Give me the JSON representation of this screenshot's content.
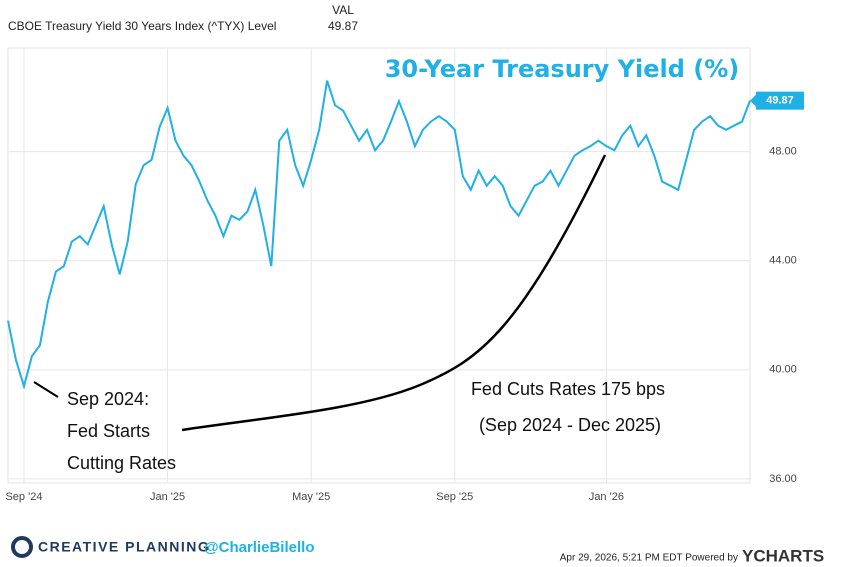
{
  "chart_data": {
    "type": "line",
    "header": {
      "series_label": "CBOE Treasury Yield 30 Years Index (^TYX) Level",
      "value_heading": "VAL"
    },
    "title": "30-Year Treasury Yield (%)",
    "annotations": {
      "left": [
        "Sep 2024:",
        "Fed Starts",
        "Cutting Rates"
      ],
      "right": [
        "Fed Cuts Rates 175 bps",
        "(Sep 2024 - Dec 2025)"
      ]
    },
    "categories": [
      null,
      null,
      "Sep '24",
      null,
      null,
      null,
      null,
      null,
      null,
      null,
      null,
      null,
      null,
      null,
      null,
      null,
      null,
      null,
      null,
      null,
      "Jan '25",
      null,
      null,
      null,
      null,
      null,
      null,
      null,
      null,
      null,
      null,
      null,
      null,
      null,
      null,
      null,
      null,
      null,
      "May '25",
      null,
      null,
      null,
      null,
      null,
      null,
      null,
      null,
      null,
      null,
      null,
      null,
      null,
      null,
      null,
      null,
      null,
      "Sep '25",
      null,
      null,
      null,
      null,
      null,
      null,
      null,
      null,
      null,
      null,
      null,
      null,
      null,
      null,
      null,
      null,
      null,
      null,
      "Jan '26",
      null,
      null,
      null,
      null,
      null,
      null,
      null,
      null,
      null,
      null,
      null,
      null,
      null,
      null,
      null,
      null,
      null,
      null
    ],
    "series": [
      {
        "name": "CBOE Treasury Yield 30 Years Index (^TYX) Level",
        "color": "#1fb0e6",
        "values": [
          41.8,
          40.35,
          39.4,
          40.5,
          40.9,
          42.5,
          43.6,
          43.8,
          44.7,
          44.9,
          44.6,
          45.3,
          46.0,
          44.6,
          43.5,
          44.7,
          46.8,
          47.5,
          47.7,
          48.9,
          49.6,
          48.4,
          47.85,
          47.5,
          46.9,
          46.2,
          45.65,
          44.9,
          45.65,
          45.5,
          45.8,
          46.6,
          45.3,
          43.8,
          48.4,
          48.8,
          47.5,
          46.75,
          47.7,
          48.8,
          50.6,
          49.7,
          49.5,
          48.95,
          48.4,
          48.8,
          48.05,
          48.4,
          49.1,
          49.85,
          49.1,
          48.2,
          48.8,
          49.1,
          49.3,
          49.1,
          48.8,
          47.1,
          46.6,
          47.3,
          46.75,
          47.1,
          46.75,
          46.0,
          45.65,
          46.2,
          46.75,
          46.9,
          47.3,
          46.75,
          47.3,
          47.85,
          48.05,
          48.2,
          48.4,
          48.2,
          48.05,
          48.6,
          48.95,
          48.2,
          48.6,
          47.85,
          46.9,
          46.75,
          46.6,
          47.7,
          48.8,
          49.1,
          49.3,
          48.95,
          48.8,
          48.95,
          49.1,
          49.87
        ]
      }
    ],
    "ylim": [
      35.85,
      51.8
    ],
    "yticks": [
      {
        "value": 36,
        "label": "36.00"
      },
      {
        "value": 40,
        "label": "40.00"
      },
      {
        "value": 44,
        "label": "44.00"
      },
      {
        "value": 48,
        "label": "48.00"
      }
    ],
    "grid": true,
    "footer": {
      "brand": "CREATIVE PLANNING",
      "handle": "@CharlieBilello",
      "timestamp": "Apr 29, 2026, 5:21 PM EDT Powered by",
      "provider": "YCHARTS"
    }
  }
}
